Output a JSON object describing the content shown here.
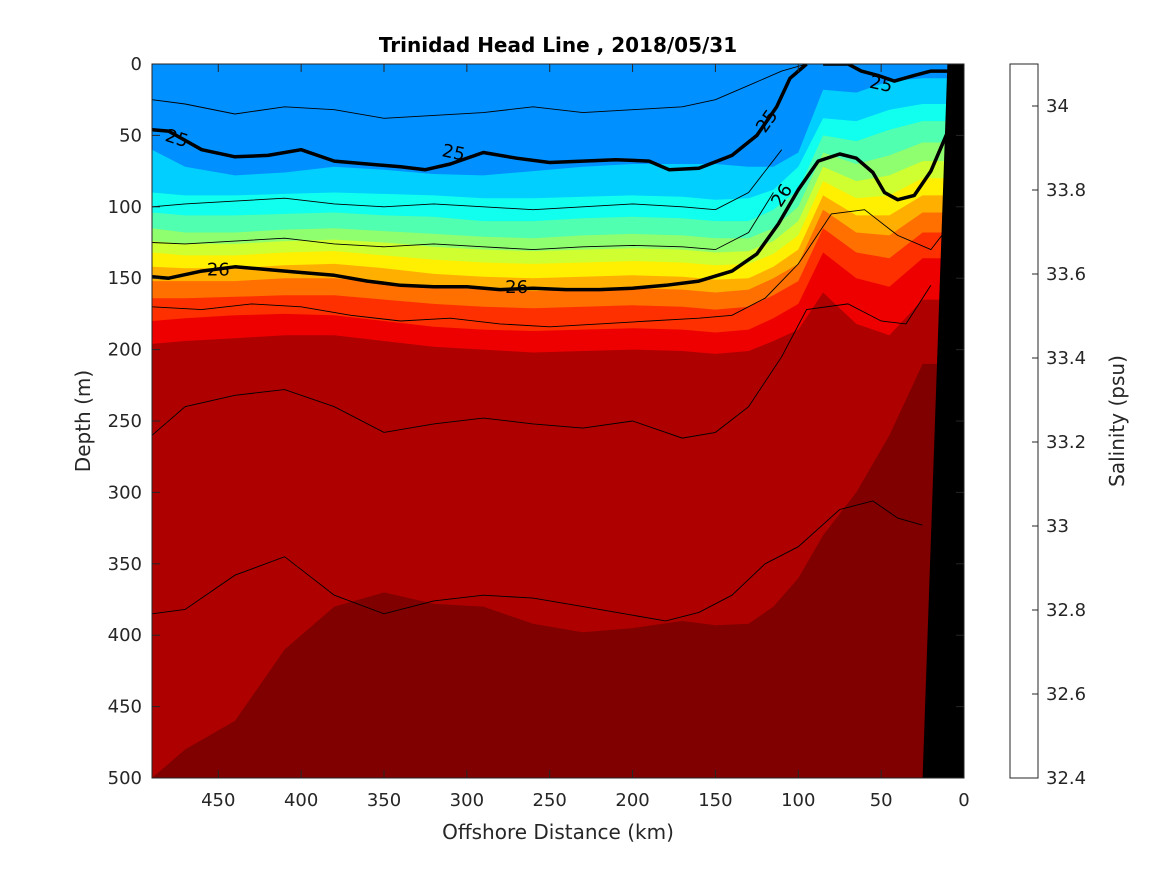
{
  "chart_data": {
    "type": "heatmap",
    "title": "Trinidad Head Line , 2018/05/31",
    "xlabel": "Offshore Distance (km)",
    "ylabel": "Depth (m)",
    "xlim": [
      490,
      0
    ],
    "ylim": [
      0,
      500
    ],
    "x_ticks": [
      "450",
      "400",
      "350",
      "300",
      "250",
      "200",
      "150",
      "100",
      "50",
      "0"
    ],
    "y_ticks": [
      "0",
      "50",
      "100",
      "150",
      "200",
      "250",
      "300",
      "350",
      "400",
      "450",
      "500"
    ],
    "colorbar": {
      "label": "Salinity (psu)",
      "range": [
        32.4,
        34.1
      ],
      "step": 0.1,
      "tick_labels": [
        "32.4",
        "32.6",
        "32.8",
        "33",
        "33.2",
        "33.4",
        "33.6",
        "33.8",
        "34"
      ],
      "colors": [
        "#00008F",
        "#0000C8",
        "#0010FF",
        "#0050FF",
        "#0090FF",
        "#00CFFF",
        "#10FFEF",
        "#50FFAF",
        "#90FF6F",
        "#CFFF30",
        "#FFEF00",
        "#FFAF00",
        "#FF7000",
        "#FF3000",
        "#EF0000",
        "#AF0000",
        "#800000"
      ]
    },
    "salinity_layers": [
      {
        "salinity": 32.8,
        "depth": [
          0,
          0,
          0,
          0,
          0,
          0,
          0,
          0,
          0,
          0,
          0,
          0,
          0,
          0,
          0,
          0,
          0,
          0,
          0,
          0
        ]
      },
      {
        "salinity": 32.9,
        "depth": [
          60,
          72,
          78,
          76,
          72,
          74,
          77,
          78,
          75,
          72,
          70,
          70,
          70,
          72,
          72,
          62,
          18,
          20,
          12,
          10
        ]
      },
      {
        "salinity": 33.0,
        "depth": [
          90,
          92,
          92,
          91,
          90,
          91,
          92,
          94,
          94,
          93,
          92,
          93,
          95,
          94,
          88,
          72,
          38,
          40,
          32,
          28
        ]
      },
      {
        "salinity": 33.1,
        "depth": [
          104,
          106,
          106,
          105,
          104,
          106,
          107,
          110,
          110,
          108,
          107,
          108,
          110,
          110,
          102,
          88,
          50,
          54,
          46,
          40
        ]
      },
      {
        "salinity": 33.2,
        "depth": [
          115,
          118,
          118,
          116,
          115,
          117,
          119,
          121,
          122,
          120,
          119,
          120,
          122,
          122,
          115,
          100,
          62,
          70,
          64,
          55
        ]
      },
      {
        "salinity": 33.3,
        "depth": [
          124,
          126,
          126,
          124,
          123,
          125,
          128,
          130,
          131,
          130,
          129,
          130,
          132,
          131,
          124,
          110,
          72,
          82,
          78,
          68
        ]
      },
      {
        "salinity": 33.4,
        "depth": [
          132,
          134,
          134,
          132,
          131,
          134,
          137,
          139,
          140,
          139,
          138,
          139,
          141,
          140,
          133,
          120,
          82,
          94,
          92,
          80
        ]
      },
      {
        "salinity": 33.5,
        "depth": [
          142,
          143,
          143,
          141,
          140,
          143,
          147,
          149,
          150,
          149,
          148,
          149,
          151,
          150,
          142,
          130,
          92,
          106,
          106,
          92
        ]
      },
      {
        "salinity": 33.6,
        "depth": [
          152,
          152,
          152,
          150,
          150,
          153,
          156,
          158,
          159,
          158,
          157,
          158,
          160,
          158,
          150,
          140,
          102,
          118,
          120,
          104
        ]
      },
      {
        "salinity": 33.7,
        "depth": [
          164,
          164,
          163,
          162,
          162,
          165,
          168,
          170,
          171,
          170,
          169,
          170,
          172,
          170,
          162,
          152,
          115,
          132,
          136,
          118
        ]
      },
      {
        "salinity": 33.8,
        "depth": [
          180,
          178,
          176,
          175,
          176,
          180,
          184,
          186,
          187,
          186,
          185,
          186,
          188,
          186,
          178,
          168,
          132,
          150,
          156,
          136
        ]
      },
      {
        "salinity": 33.9,
        "depth": [
          196,
          194,
          192,
          190,
          190,
          194,
          198,
          200,
          202,
          201,
          200,
          201,
          203,
          201,
          194,
          186,
          160,
          182,
          190,
          165
        ]
      },
      {
        "salinity": 34.0,
        "depth": [
          500,
          480,
          460,
          410,
          380,
          370,
          378,
          380,
          392,
          398,
          395,
          390,
          393,
          392,
          380,
          360,
          330,
          300,
          260,
          210
        ]
      },
      {
        "salinity": 34.1,
        "depth": [
          500,
          500,
          500,
          500,
          500,
          500,
          500,
          500,
          500,
          500,
          500,
          500,
          500,
          500,
          500,
          480,
          440,
          400,
          380,
          380
        ]
      }
    ],
    "layer_x_km": [
      490,
      470,
      440,
      410,
      380,
      350,
      320,
      290,
      260,
      230,
      200,
      170,
      150,
      130,
      115,
      100,
      85,
      65,
      45,
      25
    ],
    "density_contours": [
      {
        "value": "25",
        "emphasis": true,
        "x": [
          490,
          480,
          460,
          440,
          420,
          400,
          380,
          360,
          340,
          325,
          310,
          290,
          270,
          250,
          230,
          210,
          190,
          178,
          160,
          140,
          125,
          113,
          105,
          95
        ],
        "y": [
          46,
          47,
          60,
          65,
          64,
          60,
          68,
          70,
          72,
          74,
          70,
          62,
          66,
          69,
          68,
          67,
          68,
          74,
          73,
          64,
          50,
          30,
          10,
          0
        ]
      },
      {
        "value": "25",
        "emphasis": true,
        "x": [
          85,
          70,
          62,
          52,
          42,
          30,
          20,
          10
        ],
        "y": [
          0,
          0,
          5,
          8,
          12,
          8,
          5,
          5
        ]
      },
      {
        "value": "26",
        "emphasis": true,
        "x": [
          490,
          480,
          460,
          440,
          420,
          400,
          380,
          360,
          340,
          320,
          300,
          280,
          260,
          240,
          220,
          200,
          180,
          160,
          140,
          125,
          112,
          100,
          88,
          75,
          65,
          55,
          48,
          40,
          30,
          20,
          10
        ],
        "y": [
          149,
          150,
          145,
          142,
          144,
          146,
          148,
          152,
          155,
          156,
          156,
          158,
          157,
          158,
          158,
          157,
          155,
          152,
          145,
          133,
          112,
          88,
          68,
          63,
          66,
          76,
          90,
          95,
          92,
          75,
          48
        ]
      }
    ],
    "thin_contours": [
      {
        "x": [
          490,
          470,
          440,
          410,
          380,
          350,
          320,
          290,
          260,
          230,
          200,
          170,
          150,
          130,
          110,
          95
        ],
        "y": [
          25,
          28,
          35,
          30,
          32,
          38,
          36,
          34,
          30,
          34,
          32,
          30,
          25,
          15,
          5,
          0
        ]
      },
      {
        "x": [
          490,
          470,
          440,
          410,
          380,
          350,
          320,
          290,
          260,
          230,
          200,
          170,
          150,
          130,
          110
        ],
        "y": [
          100,
          98,
          96,
          94,
          98,
          100,
          98,
          100,
          102,
          100,
          98,
          100,
          102,
          90,
          60
        ]
      },
      {
        "x": [
          490,
          470,
          440,
          410,
          380,
          350,
          320,
          290,
          260,
          230,
          200,
          170,
          150,
          130,
          115
        ],
        "y": [
          125,
          126,
          124,
          122,
          126,
          128,
          126,
          128,
          130,
          128,
          127,
          128,
          130,
          118,
          90
        ]
      },
      {
        "x": [
          490,
          460,
          430,
          400,
          370,
          340,
          310,
          280,
          250,
          220,
          190,
          160,
          140,
          120,
          100,
          80,
          60,
          40,
          20,
          10
        ],
        "y": [
          170,
          172,
          168,
          170,
          176,
          180,
          178,
          182,
          184,
          182,
          180,
          178,
          176,
          164,
          140,
          105,
          102,
          120,
          130,
          115
        ]
      },
      {
        "x": [
          490,
          470,
          440,
          410,
          380,
          350,
          320,
          290,
          260,
          230,
          200,
          170,
          150,
          130,
          110,
          95,
          70,
          50,
          35,
          20
        ],
        "y": [
          260,
          240,
          232,
          228,
          240,
          258,
          252,
          248,
          252,
          255,
          250,
          262,
          258,
          240,
          205,
          172,
          168,
          180,
          182,
          155
        ]
      },
      {
        "x": [
          490,
          470,
          440,
          410,
          380,
          350,
          320,
          290,
          260,
          230,
          200,
          180,
          160,
          140,
          120,
          100,
          75,
          55,
          40,
          25
        ],
        "y": [
          385,
          382,
          358,
          345,
          372,
          385,
          376,
          372,
          374,
          380,
          386,
          390,
          384,
          372,
          350,
          338,
          312,
          306,
          318,
          323
        ]
      }
    ],
    "contour_labels": [
      {
        "text": "25",
        "x": 475,
        "y": 52,
        "angle": 18
      },
      {
        "text": "25",
        "x": 308,
        "y": 62,
        "angle": 12
      },
      {
        "text": "25",
        "x": 119,
        "y": 40,
        "angle": -55
      },
      {
        "text": "25",
        "x": 50,
        "y": 14,
        "angle": 12
      },
      {
        "text": "26",
        "x": 450,
        "y": 144,
        "angle": 0
      },
      {
        "text": "26",
        "x": 270,
        "y": 156,
        "angle": 0
      },
      {
        "text": "26",
        "x": 110,
        "y": 92,
        "angle": -58
      }
    ],
    "bottom_mask": {
      "x": [
        0,
        25,
        10,
        0
      ],
      "y": [
        500,
        500,
        0,
        0
      ]
    }
  }
}
